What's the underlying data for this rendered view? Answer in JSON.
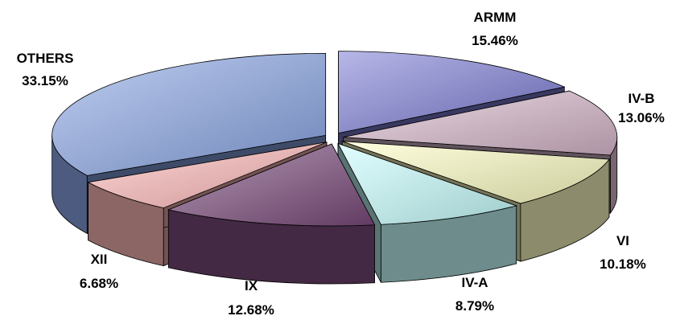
{
  "chart_data": {
    "type": "pie",
    "style": "3d-exploded",
    "title": "",
    "slices": [
      {
        "label": "ARMM",
        "value": 15.46,
        "value_label": "15.46%",
        "color": "#7c7cd6"
      },
      {
        "label": "IV-B",
        "value": 13.06,
        "value_label": "13.06%",
        "color": "#d8b8cc"
      },
      {
        "label": "VI",
        "value": 10.18,
        "value_label": "10.18%",
        "color": "#ffffc4"
      },
      {
        "label": "IV-A",
        "value": 8.79,
        "value_label": "8.79%",
        "color": "#c8ffff"
      },
      {
        "label": "IX",
        "value": 12.68,
        "value_label": "12.68%",
        "color": "#7a4a7a"
      },
      {
        "label": "XII",
        "value": 6.68,
        "value_label": "6.68%",
        "color": "#ffb8b8"
      },
      {
        "label": "OTHERS",
        "value": 33.15,
        "value_label": "33.15%",
        "color": "#8aa6e6"
      }
    ],
    "legend": "none",
    "labels_position": "outside"
  }
}
